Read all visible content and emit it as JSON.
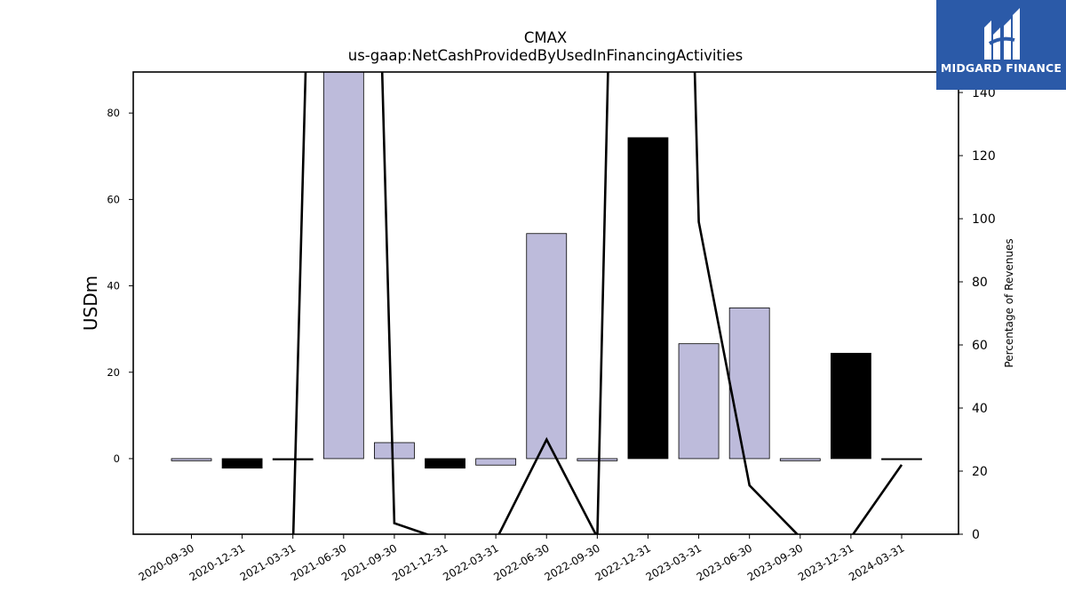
{
  "chart_data": {
    "type": "bar",
    "title": "CMAX",
    "subtitle": "us-gaap:NetCashProvidedByUsedInFinancingActivities",
    "ylabel": "USDm",
    "y2label": "Percentage of Revenues",
    "ylim": [
      -17.5,
      89.5
    ],
    "y2lim": [
      0,
      146.5
    ],
    "yticks": [
      0,
      20,
      40,
      60,
      80
    ],
    "y2ticks": [
      0,
      20,
      40,
      60,
      80,
      100,
      120,
      140
    ],
    "categories": [
      "2020-09-30",
      "2020-12-31",
      "2021-03-31",
      "2021-06-30",
      "2021-09-30",
      "2021-12-31",
      "2022-03-31",
      "2022-06-30",
      "2022-09-30",
      "2022-12-31",
      "2023-03-31",
      "2023-06-30",
      "2023-09-30",
      "2023-12-31",
      "2024-03-31"
    ],
    "values": [
      -0.5,
      -2.2,
      -0.3,
      90.5,
      3.7,
      -2.2,
      -1.5,
      52.1,
      -0.5,
      74.3,
      26.6,
      34.9,
      -0.5,
      24.4,
      -0.2
    ],
    "bar_colors": [
      "#bdbbdb",
      "#000000",
      "#000000",
      "#bdbbdb",
      "#bdbbdb",
      "#000000",
      "#bdbbdb",
      "#bdbbdb",
      "#bdbbdb",
      "#000000",
      "#bdbbdb",
      "#bdbbdb",
      "#bdbbdb",
      "#000000",
      "#000000"
    ],
    "line_series": {
      "name": "",
      "values": [
        null,
        null,
        -5,
        600,
        3.5,
        -2,
        -2,
        30,
        -1,
        700,
        99,
        15.5,
        -1,
        -1,
        22
      ]
    },
    "grid": false,
    "legend": "none"
  },
  "logo": {
    "text": "MIDGARD FINANCE",
    "color": "#2b5aa8"
  }
}
